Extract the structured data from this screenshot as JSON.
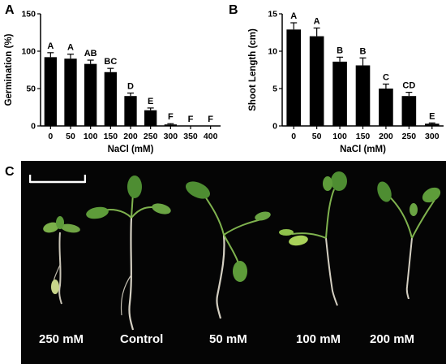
{
  "panels": {
    "a": "A",
    "b": "B",
    "c": "C"
  },
  "chart_data": [
    {
      "type": "bar",
      "ylabel": "Germination (%)",
      "xlabel": "NaCl (mM)",
      "ylim": [
        0,
        150
      ],
      "yticks": [
        0,
        50,
        100,
        150
      ],
      "categories": [
        "0",
        "50",
        "100",
        "150",
        "200",
        "250",
        "300",
        "350",
        "400"
      ],
      "values": [
        92,
        90,
        83,
        72,
        40,
        21,
        2,
        0,
        0
      ],
      "errors": [
        6,
        6,
        5,
        5,
        4,
        3,
        1,
        0,
        0
      ],
      "annotations": [
        "A",
        "A",
        "AB",
        "BC",
        "D",
        "E",
        "F",
        "F",
        "F"
      ],
      "bar_color": "#000000",
      "grid": false
    },
    {
      "type": "bar",
      "ylabel": "Shoot Length (cm)",
      "xlabel": "NaCl (mM)",
      "ylim": [
        0,
        15
      ],
      "yticks": [
        0,
        5,
        10,
        15
      ],
      "categories": [
        "0",
        "50",
        "100",
        "150",
        "200",
        "250",
        "300"
      ],
      "values": [
        12.9,
        12.0,
        8.6,
        8.1,
        5.0,
        4.0,
        0.3
      ],
      "errors": [
        0.9,
        1.1,
        0.6,
        1.0,
        0.6,
        0.5,
        0.1
      ],
      "annotations": [
        "A",
        "A",
        "B",
        "B",
        "C",
        "CD",
        "E"
      ],
      "bar_color": "#000000",
      "grid": false
    }
  ],
  "photo": {
    "background": "#050505",
    "labels": [
      "250 mM",
      "Control",
      "50 mM",
      "100 mM",
      "200 mM"
    ]
  }
}
